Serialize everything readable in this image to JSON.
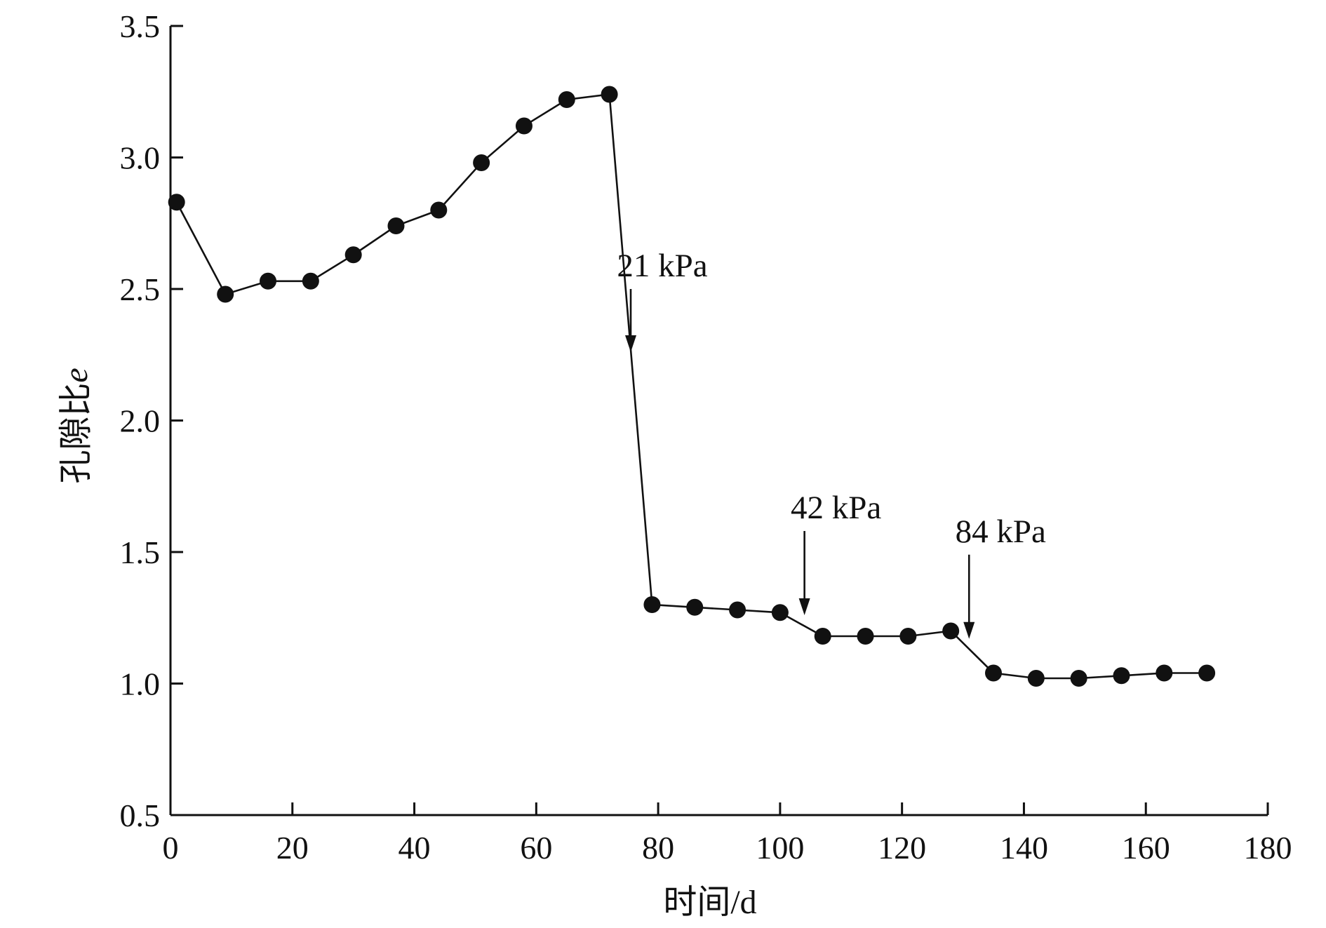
{
  "chart_data": {
    "type": "line",
    "title": "",
    "xlabel": "时间/d",
    "ylabel_main": "孔隙比",
    "ylabel_var": "e",
    "xlim": [
      0,
      180
    ],
    "ylim": [
      0.5,
      3.5
    ],
    "xticks": [
      0,
      20,
      40,
      60,
      80,
      100,
      120,
      140,
      160,
      180
    ],
    "yticks": [
      0.5,
      1.0,
      1.5,
      2.0,
      2.5,
      3.0,
      3.5
    ],
    "xtick_labels": [
      "0",
      "20",
      "40",
      "60",
      "80",
      "100",
      "120",
      "140",
      "160",
      "180"
    ],
    "ytick_labels": [
      "0.5",
      "1.0",
      "1.5",
      "2.0",
      "2.5",
      "3.0",
      "3.5"
    ],
    "grid": false,
    "series": [
      {
        "name": "孔隙比e",
        "color": "#111111",
        "marker": "filled-circle",
        "x": [
          1,
          9,
          16,
          23,
          30,
          37,
          44,
          51,
          58,
          65,
          72,
          79,
          86,
          93,
          100,
          107,
          114,
          121,
          128,
          135,
          142,
          149,
          156,
          163,
          170
        ],
        "y": [
          2.83,
          2.48,
          2.53,
          2.53,
          2.63,
          2.74,
          2.8,
          2.98,
          3.12,
          3.22,
          3.24,
          1.3,
          1.29,
          1.28,
          1.27,
          1.18,
          1.18,
          1.18,
          1.2,
          1.04,
          1.02,
          1.02,
          1.03,
          1.04,
          1.04
        ]
      }
    ],
    "annotations": [
      {
        "label": "21 kPa",
        "x": 75.5,
        "arrow_from_y": 2.5,
        "arrow_to_y": 2.26
      },
      {
        "label": "42 kPa",
        "x": 104,
        "arrow_from_y": 1.58,
        "arrow_to_y": 1.26
      },
      {
        "label": "84 kPa",
        "x": 131,
        "arrow_from_y": 1.49,
        "arrow_to_y": 1.17
      }
    ]
  }
}
